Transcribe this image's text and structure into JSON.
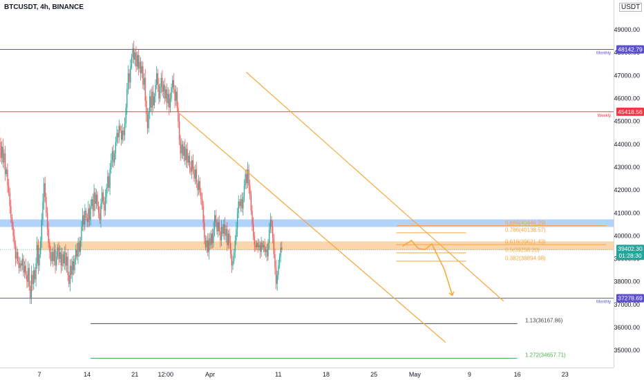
{
  "header": {
    "title": "BTCUSDT, 4h, BINANCE",
    "currency": "USDT"
  },
  "colors": {
    "bull": "#26a69a",
    "bear": "#ef5350",
    "orange": "#f7a539",
    "purple": "#5b4fcf",
    "red": "#f23645",
    "blue_zone": "#90bff9",
    "orange_zone": "#f9c48a",
    "dark_line": "#434651",
    "green_line": "#4caf50"
  },
  "chart_data": {
    "type": "candlestick",
    "symbol": "BTCUSDT",
    "interval": "4h",
    "exchange": "BINANCE",
    "ylim": [
      34250,
      50300
    ],
    "y_ticks": [
      35000,
      36000,
      37000,
      38000,
      39000,
      40000,
      41000,
      42000,
      43000,
      44000,
      45000,
      46000,
      47000,
      48000,
      49000
    ],
    "y_tick_labels": [
      "35000.00",
      "36000.00",
      "37000.00",
      "38000.00",
      "39000.00",
      "40000.00",
      "41000.00",
      "42000.00",
      "43000.00",
      "44000.00",
      "45000.00",
      "46000.00",
      "47000.00",
      "48000.00",
      "49000.00"
    ],
    "x_ticks": [
      {
        "label": "7",
        "day": 7
      },
      {
        "label": "14",
        "day": 14
      },
      {
        "label": "21",
        "day": 21
      },
      {
        "label": "12:00",
        "day": 25.5
      },
      {
        "label": "Apr",
        "day": 32
      },
      {
        "label": "11",
        "day": 42
      },
      {
        "label": "18",
        "day": 49
      },
      {
        "label": "25",
        "day": 56
      },
      {
        "label": "May",
        "day": 62
      },
      {
        "label": "9",
        "day": 70
      },
      {
        "label": "16",
        "day": 77
      },
      {
        "label": "23",
        "day": 84
      }
    ],
    "horizontal_levels": [
      {
        "price": 48142.79,
        "price_label": "48142.79",
        "name": "Monthly",
        "color": "purple"
      },
      {
        "price": 45418.56,
        "price_label": "45418.56",
        "name": "Weekly",
        "color": "red"
      },
      {
        "price": 37278.69,
        "price_label": "37278.69",
        "name": "Monthly",
        "color": "purple"
      }
    ],
    "current_price": {
      "price": 39402.3,
      "label": "39402.30",
      "countdown": "01:28:30"
    },
    "zones": [
      {
        "from": 40390,
        "to": 40720,
        "color": "blue_zone",
        "start_day": 0
      },
      {
        "from": 39380,
        "to": 39760,
        "color": "orange_zone",
        "start_day": 6.5
      }
    ],
    "fib_levels": [
      {
        "label": "0.886(40446.39)",
        "price": 40446.39,
        "start_day": 59.3,
        "end_day": 90
      },
      {
        "label": "0.786(40138.57)",
        "price": 40138.57,
        "start_day": 59.3,
        "end_day": 69.5
      },
      {
        "label": "0.618(39621.43)",
        "price": 39621.43,
        "start_day": 59.3,
        "end_day": 90
      },
      {
        "label": "0.5(39258.20)",
        "price": 39258.2,
        "start_day": 59.3,
        "end_day": 69.5
      },
      {
        "label": "0.382(38894.98)",
        "price": 38894.98,
        "start_day": 59.3,
        "end_day": 69.5
      }
    ],
    "extension_levels": [
      {
        "label": "1.13(36167.86)",
        "price": 36167.86,
        "start_day": 14.5,
        "end_day": 77,
        "color": "dark_line"
      },
      {
        "label": "1.272(34657.71)",
        "price": 34657.71,
        "start_day": 14.5,
        "end_day": 77,
        "color": "green_line"
      }
    ],
    "channel_lines": [
      {
        "from": [
          37.3,
          47150
        ],
        "to": [
          75,
          37150
        ]
      },
      {
        "from": [
          27.5,
          45350
        ],
        "to": [
          66.5,
          35350
        ]
      }
    ],
    "projection_path": [
      [
        60.2,
        39550
      ],
      [
        61.5,
        39800
      ],
      [
        62.5,
        39450
      ],
      [
        63.5,
        39400
      ],
      [
        64.5,
        39650
      ],
      [
        65.3,
        39150
      ],
      [
        66.3,
        38550
      ],
      [
        67.5,
        37400
      ]
    ],
    "candle_start_day": 0.5,
    "candle_interval_days": 0.1667,
    "candle_values": [
      43550,
      44300,
      43800,
      44700,
      44100,
      43400,
      43900,
      43200,
      43600,
      42700,
      42900,
      42200,
      41900,
      41300,
      40800,
      40400,
      40000,
      39600,
      39000,
      39300,
      38900,
      38600,
      38800,
      38700,
      39000,
      38400,
      38700,
      38300,
      38000,
      38600,
      37800,
      37300,
      38300,
      37900,
      38500,
      38100,
      38800,
      39600,
      38700,
      39200,
      39800,
      40700,
      41500,
      42300,
      41700,
      41000,
      40300,
      39700,
      39300,
      38900,
      39300,
      38900,
      39400,
      38700,
      39100,
      39500,
      39000,
      39300,
      38700,
      39200,
      38800,
      39300,
      38700,
      39100,
      38300,
      37900,
      38700,
      38300,
      38900,
      38500,
      39000,
      39400,
      39100,
      39700,
      39300,
      39800,
      40400,
      40900,
      40500,
      41100,
      40800,
      40600,
      41200,
      40700,
      41300,
      41600,
      41100,
      41900,
      41400,
      41800,
      41300,
      41000,
      40700,
      41400,
      41900,
      41500,
      41100,
      41700,
      42100,
      42600,
      42100,
      42900,
      43300,
      43700,
      43200,
      43600,
      44100,
      44500,
      44300,
      44800,
      44600,
      44200,
      44600,
      44400,
      44900,
      45600,
      46400,
      47100,
      46700,
      47400,
      47800,
      48200,
      47700,
      48000,
      47400,
      47900,
      47300,
      47600,
      47100,
      47400,
      46600,
      46900,
      45900,
      45300,
      44700,
      45400,
      46100,
      45600,
      46300,
      45700,
      46100,
      46600,
      47100,
      46600,
      46000,
      46500,
      46900,
      46300,
      46600,
      46000,
      46400,
      45800,
      46200,
      45600,
      46000,
      46500,
      46800,
      46400,
      45900,
      46300,
      45600,
      45000,
      44200,
      43600,
      44000,
      43500,
      43900,
      43300,
      43800,
      43200,
      43500,
      43000,
      42800,
      43300,
      42900,
      42500,
      42900,
      42300,
      42000,
      42400,
      41900,
      41600,
      41300,
      40600,
      39900,
      39500,
      39800,
      39300,
      39900,
      39600,
      40100,
      39700,
      40300,
      40900,
      40600,
      40200,
      40600,
      40200,
      39800,
      40400,
      40100,
      40500,
      40000,
      40300,
      39600,
      40100,
      39700,
      39200,
      38700,
      38900,
      39300,
      39800,
      40300,
      41000,
      41500,
      41300,
      41600,
      41200,
      41700,
      42200,
      42700,
      42300,
      42900,
      42200,
      41800,
      41100,
      40500,
      40000,
      39600,
      39500,
      39700,
      39500,
      39600,
      39300,
      39700,
      39500,
      39600,
      39300,
      39400,
      39100,
      39700,
      40300,
      40700,
      40400,
      39900,
      39200,
      38600,
      37900,
      38300,
      38700,
      39100,
      39500,
      39400
    ]
  }
}
